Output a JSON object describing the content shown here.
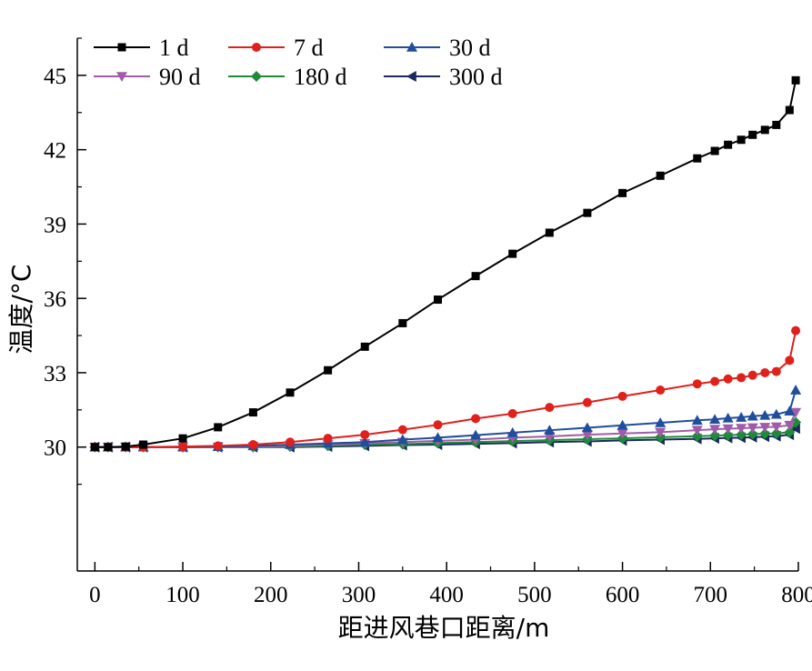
{
  "chart_data": {
    "type": "line",
    "xlabel": "距进风巷口距离/m",
    "ylabel": "温度/°C",
    "xlim": [
      -20,
      800
    ],
    "ylim": [
      25,
      46.5
    ],
    "xticks": [
      0,
      100,
      200,
      300,
      400,
      500,
      600,
      700,
      800
    ],
    "xtick_labels": [
      "0",
      "100",
      "200",
      "300",
      "400",
      "500",
      "600",
      "700",
      "800"
    ],
    "yticks": [
      30,
      33,
      36,
      39,
      42,
      45
    ],
    "ytick_labels": [
      "30",
      "33",
      "36",
      "39",
      "42",
      "45"
    ],
    "grid": false,
    "legend_position": "top-left",
    "x": [
      0,
      15,
      35,
      55,
      100,
      140,
      180,
      222,
      265,
      307,
      350,
      390,
      433,
      475,
      517,
      560,
      600,
      643,
      685,
      705,
      720,
      735,
      748,
      762,
      775,
      790,
      797
    ],
    "series": [
      {
        "name": "1 d",
        "color": "#000000",
        "marker": "square",
        "values": [
          30.0,
          30.0,
          30.02,
          30.1,
          30.35,
          30.8,
          31.4,
          32.2,
          33.1,
          34.05,
          35.0,
          35.95,
          36.9,
          37.8,
          38.65,
          39.45,
          40.25,
          40.95,
          41.65,
          41.95,
          42.2,
          42.4,
          42.6,
          42.8,
          43.0,
          43.6,
          44.8
        ]
      },
      {
        "name": "7 d",
        "color": "#e0201b",
        "marker": "circle",
        "values": [
          30.0,
          30.0,
          30.0,
          30.0,
          30.02,
          30.05,
          30.1,
          30.2,
          30.35,
          30.5,
          30.7,
          30.9,
          31.15,
          31.35,
          31.6,
          31.8,
          32.05,
          32.3,
          32.55,
          32.65,
          32.75,
          32.8,
          32.9,
          33.0,
          33.05,
          33.5,
          34.7
        ]
      },
      {
        "name": "30 d",
        "color": "#1f4e9c",
        "marker": "triangle-up",
        "values": [
          30.0,
          30.0,
          30.0,
          30.0,
          30.0,
          30.02,
          30.05,
          30.1,
          30.15,
          30.2,
          30.3,
          30.38,
          30.48,
          30.58,
          30.68,
          30.78,
          30.88,
          30.98,
          31.08,
          31.12,
          31.17,
          31.2,
          31.25,
          31.28,
          31.32,
          31.45,
          32.3
        ]
      },
      {
        "name": "90 d",
        "color": "#a05ca8",
        "marker": "triangle-down",
        "values": [
          30.0,
          30.0,
          30.0,
          30.0,
          30.0,
          30.0,
          30.02,
          30.05,
          30.1,
          30.15,
          30.2,
          30.25,
          30.3,
          30.38,
          30.43,
          30.5,
          30.55,
          30.6,
          30.68,
          30.72,
          30.74,
          30.76,
          30.78,
          30.8,
          30.82,
          30.88,
          31.4
        ]
      },
      {
        "name": "180 d",
        "color": "#1f8a3a",
        "marker": "diamond",
        "values": [
          30.0,
          30.0,
          30.0,
          30.0,
          30.0,
          30.0,
          30.0,
          30.02,
          30.05,
          30.1,
          30.12,
          30.16,
          30.2,
          30.24,
          30.28,
          30.32,
          30.35,
          30.4,
          30.44,
          30.46,
          30.48,
          30.5,
          30.52,
          30.54,
          30.55,
          30.6,
          31.0
        ]
      },
      {
        "name": "300 d",
        "color": "#1a2a5c",
        "marker": "triangle-left",
        "values": [
          30.0,
          30.0,
          30.0,
          30.0,
          30.0,
          30.0,
          30.0,
          30.0,
          30.02,
          30.05,
          30.08,
          30.1,
          30.13,
          30.16,
          30.2,
          30.23,
          30.27,
          30.3,
          30.33,
          30.35,
          30.37,
          30.38,
          30.4,
          30.42,
          30.44,
          30.5,
          30.75
        ]
      }
    ]
  }
}
